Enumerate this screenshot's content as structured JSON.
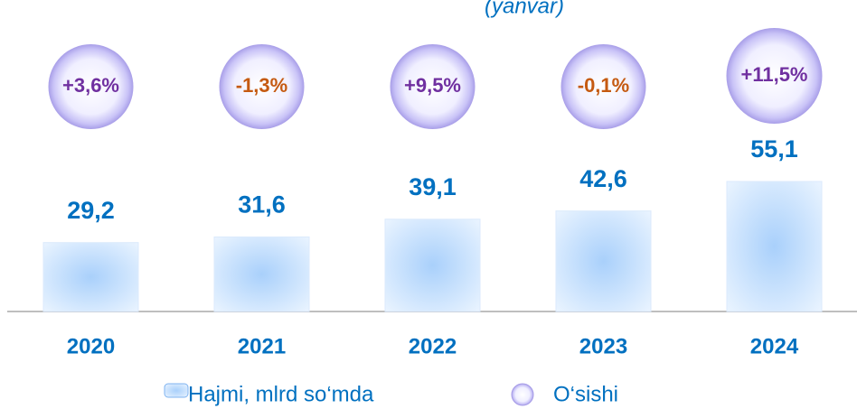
{
  "chart_data": {
    "type": "bar",
    "subtitle": "(yanvar)",
    "categories": [
      "2020",
      "2021",
      "2022",
      "2023",
      "2024"
    ],
    "series": [
      {
        "name": "Hajmi, mlrd so‘mda",
        "color": "#0070c0",
        "values": [
          29.2,
          31.6,
          39.1,
          42.6,
          55.1
        ],
        "value_labels": [
          "29,2",
          "31,6",
          "39,1",
          "42,6",
          "55,1"
        ]
      },
      {
        "name": "O‘sishi",
        "type": "bubble",
        "values": [
          3.6,
          -1.3,
          9.5,
          -0.1,
          11.5
        ],
        "value_labels": [
          "+3,6%",
          "-1,3%",
          "+9,5%",
          "-0,1%",
          "+11,5%"
        ],
        "colors": [
          "#7030a0",
          "#c55a11",
          "#7030a0",
          "#c55a11",
          "#7030a0"
        ]
      }
    ]
  }
}
